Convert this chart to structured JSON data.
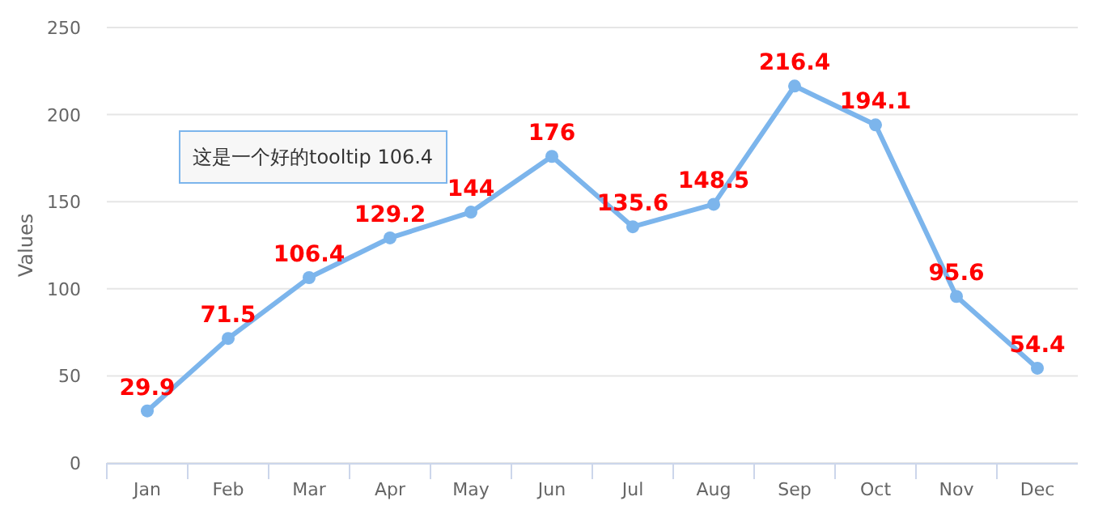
{
  "chart_data": {
    "type": "line",
    "ylabel": "Values",
    "categories": [
      "Jan",
      "Feb",
      "Mar",
      "Apr",
      "May",
      "Jun",
      "Jul",
      "Aug",
      "Sep",
      "Oct",
      "Nov",
      "Dec"
    ],
    "series": [
      {
        "color": "#7cb5ec",
        "values": [
          29.9,
          71.5,
          106.4,
          129.2,
          144,
          176,
          135.6,
          148.5,
          216.4,
          194.1,
          95.6,
          54.4
        ]
      }
    ],
    "ylim": [
      0,
      250
    ],
    "yticks": [
      0,
      50,
      100,
      150,
      200,
      250
    ],
    "grid": "y",
    "data_labels": true,
    "marker": "circle",
    "line_style": "solid",
    "annotations": [
      "这是一个好的tooltip 106.4"
    ]
  }
}
